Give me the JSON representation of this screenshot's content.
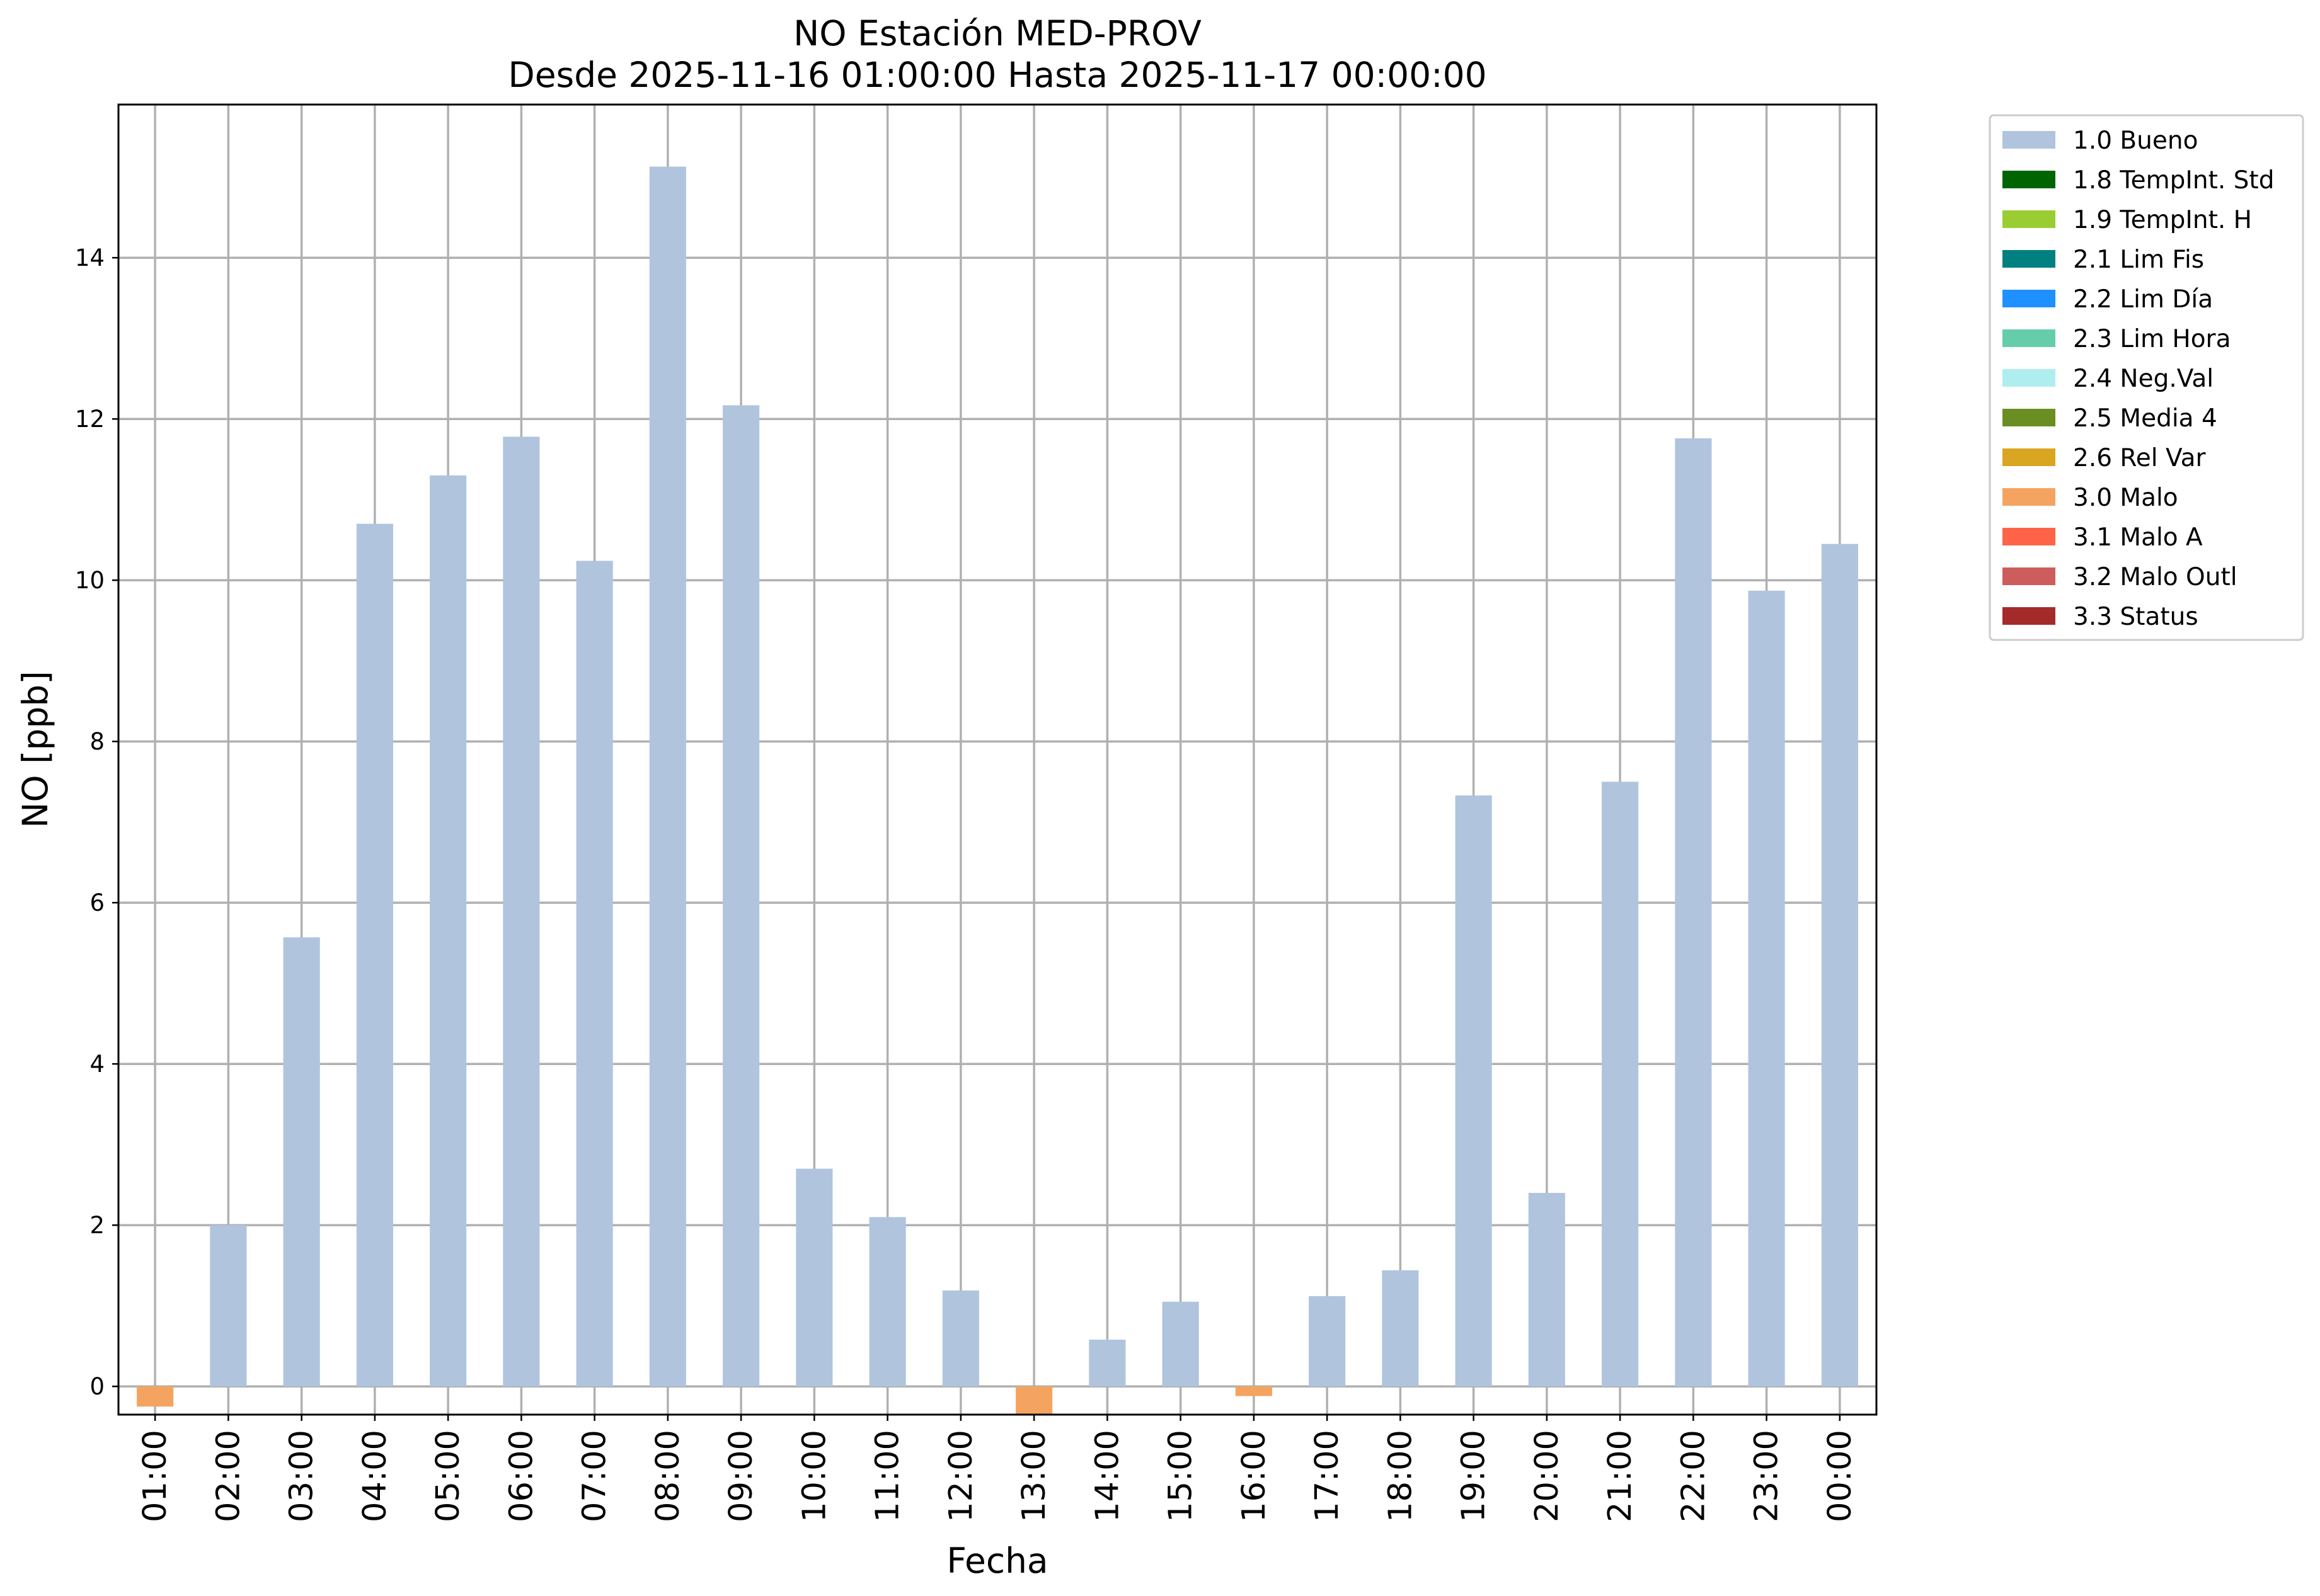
{
  "chart_data": {
    "type": "bar",
    "title": "NO Estación MED-PROV",
    "subtitle": "Desde 2025-11-16 01:00:00 Hasta 2025-11-17 00:00:00",
    "xlabel": "Fecha",
    "ylabel": "NO [ppb]",
    "ylim": [
      -0.35,
      15.9
    ],
    "yticks": [
      0,
      2,
      4,
      6,
      8,
      10,
      12,
      14
    ],
    "grid": true,
    "legend_position": "outside-right",
    "categories": [
      "01:00",
      "02:00",
      "03:00",
      "04:00",
      "05:00",
      "06:00",
      "07:00",
      "08:00",
      "09:00",
      "10:00",
      "11:00",
      "12:00",
      "13:00",
      "14:00",
      "15:00",
      "16:00",
      "17:00",
      "18:00",
      "19:00",
      "20:00",
      "21:00",
      "22:00",
      "23:00",
      "00:00"
    ],
    "values": [
      -0.25,
      2.0,
      5.57,
      10.7,
      11.3,
      11.78,
      10.24,
      15.13,
      12.17,
      2.7,
      2.1,
      1.19,
      -0.35,
      0.58,
      1.05,
      -0.12,
      1.12,
      1.44,
      7.33,
      2.4,
      7.5,
      11.76,
      9.87,
      10.45
    ],
    "flags": [
      "3.0 Malo",
      "1.0 Bueno",
      "1.0 Bueno",
      "1.0 Bueno",
      "1.0 Bueno",
      "1.0 Bueno",
      "1.0 Bueno",
      "1.0 Bueno",
      "1.0 Bueno",
      "1.0 Bueno",
      "1.0 Bueno",
      "1.0 Bueno",
      "3.0 Malo",
      "1.0 Bueno",
      "1.0 Bueno",
      "3.0 Malo",
      "1.0 Bueno",
      "1.0 Bueno",
      "1.0 Bueno",
      "1.0 Bueno",
      "1.0 Bueno",
      "1.0 Bueno",
      "1.0 Bueno",
      "1.0 Bueno"
    ],
    "legend": [
      {
        "label": "1.0 Bueno",
        "color": "#b0c4de"
      },
      {
        "label": "1.8 TempInt. Std",
        "color": "#006400"
      },
      {
        "label": "1.9 TempInt. H",
        "color": "#9acd32"
      },
      {
        "label": "2.1 Lim Fis",
        "color": "#008080"
      },
      {
        "label": "2.2 Lim Día",
        "color": "#1e90ff"
      },
      {
        "label": "2.3 Lim Hora",
        "color": "#66cdaa"
      },
      {
        "label": "2.4 Neg.Val",
        "color": "#afeeee"
      },
      {
        "label": "2.5 Media 4",
        "color": "#6b8e23"
      },
      {
        "label": "2.6 Rel Var",
        "color": "#daa520"
      },
      {
        "label": "3.0 Malo",
        "color": "#f4a460"
      },
      {
        "label": "3.1 Malo A",
        "color": "#ff6347"
      },
      {
        "label": "3.2 Malo Outl",
        "color": "#cd5c5c"
      },
      {
        "label": "3.3 Status",
        "color": "#a52a2a"
      }
    ]
  }
}
